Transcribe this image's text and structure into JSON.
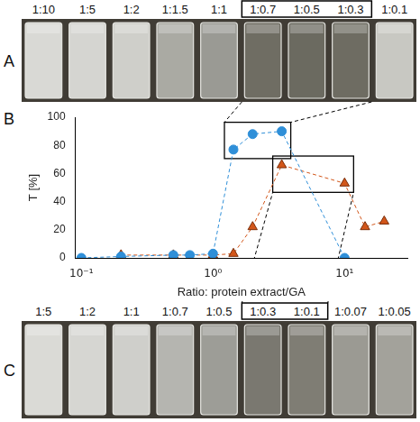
{
  "photo_panels": [
    {
      "letter": "A",
      "labels": [
        "1:10",
        "1:5",
        "1:2",
        "1:1.5",
        "1:1",
        "1:0.7",
        "1:0.5",
        "1:0.3",
        "1:0.1"
      ],
      "colors": [
        "#d9d9d5",
        "#d5d5d1",
        "#cfcfca",
        "#aaaaa3",
        "#9a9a94",
        "#6f6d63",
        "#6b6a60",
        "#6e6c62",
        "#c8c8c2"
      ],
      "boxed": [
        "1:0.7",
        "1:0.5",
        "1:0.3"
      ]
    },
    {
      "letter": "C",
      "labels": [
        "1:5",
        "1:2",
        "1:1",
        "1:0.7",
        "1:0.5",
        "1:0.3",
        "1:0.1",
        "1:0.07",
        "1:0.05"
      ],
      "colors": [
        "#dadad6",
        "#d6d6d2",
        "#cfcfcb",
        "#b5b5b0",
        "#9d9d97",
        "#7a7870",
        "#7f7d74",
        "#9b9a93",
        "#a3a29b"
      ],
      "boxed": [
        "1:0.3",
        "1:0.1"
      ]
    }
  ],
  "chart_data": {
    "type": "scatter",
    "letter": "B",
    "xlabel": "Ratio: protein extract/GA",
    "ylabel": "T [%]",
    "log": "x",
    "xlim": [
      0.09,
      30
    ],
    "xticks": [
      {
        "value": 0.1,
        "label": "10⁻¹"
      },
      {
        "value": 1,
        "label": "10⁰"
      },
      {
        "value": 10,
        "label": "10¹"
      }
    ],
    "ylim": [
      0,
      100
    ],
    "yticks": [
      0,
      20,
      40,
      60,
      80,
      100
    ],
    "grid": false,
    "series": [
      {
        "color": "#2f8fd8",
        "marker": "circle",
        "line_style": "dashed",
        "x": [
          0.1,
          0.2,
          0.5,
          0.667,
          1,
          1.43,
          2,
          3.33,
          10
        ],
        "values": [
          0,
          1,
          2,
          2,
          3,
          77,
          88,
          90,
          0
        ]
      },
      {
        "color": "#d2561a",
        "marker": "triangle",
        "line_style": "dashed",
        "x": [
          0.2,
          0.5,
          1,
          1.43,
          2,
          3.33,
          10,
          14.3,
          20
        ],
        "values": [
          2,
          2,
          2,
          3,
          22,
          66,
          53,
          22,
          26
        ]
      }
    ]
  }
}
